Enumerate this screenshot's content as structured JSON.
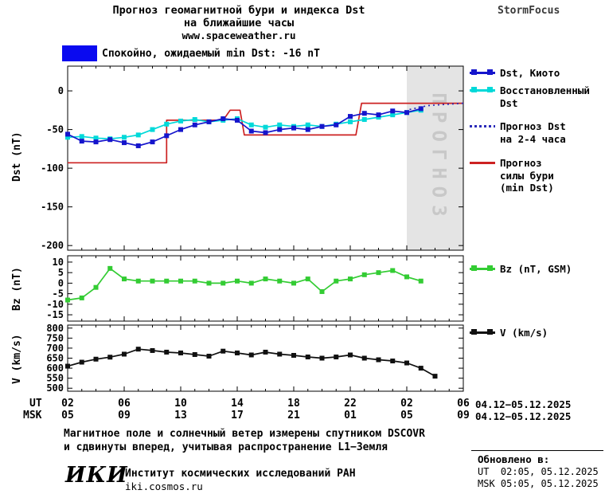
{
  "header": {
    "title_line1": "Прогноз геомагнитной бури и индекса Dst",
    "title_line2": "на ближайшие часы",
    "site": "www.spaceweather.ru",
    "brand": "StormFocus"
  },
  "status": {
    "label": "Спокойно, ожидаемый min Dst: -16 nT"
  },
  "colors": {
    "dst_kyoto": "#1515cc",
    "restored": "#00d9d9",
    "forecast_dst": "#2a2ab8",
    "forecast_storm": "#cc2222",
    "bz": "#33cc33",
    "v": "#101010",
    "status_box": "#0a0af0",
    "band": "#e4e4e4",
    "band_text": "#c8c8c8"
  },
  "chart_data": [
    {
      "id": "dst",
      "type": "line",
      "ylabel": "Dst (nT)",
      "ylim": [
        32,
        -206
      ],
      "yticks": [
        0,
        -50,
        -100,
        -150,
        -200
      ],
      "xlim": [
        2,
        30
      ],
      "xticks_major": [
        2,
        6,
        10,
        14,
        18,
        22,
        26,
        30
      ],
      "band": {
        "start_hour": 26,
        "label": "ПРОГНОЗ"
      },
      "series": [
        {
          "name": "Прогноз силы бури (min Dst)",
          "color": "#cc2222",
          "x": [
            2,
            9,
            9,
            13,
            13.5,
            14.2,
            14.5,
            22.4,
            22.8,
            30
          ],
          "values": [
            -93,
            -93,
            -38,
            -38,
            -25,
            -25,
            -57,
            -57,
            -16,
            -16
          ]
        },
        {
          "name": "Восстановленный Dst",
          "color": "#00d9d9",
          "marker": "square",
          "x": [
            2,
            3,
            4,
            5,
            6,
            7,
            8,
            9,
            10,
            11,
            12,
            13,
            14,
            15,
            16,
            17,
            18,
            19,
            20,
            21,
            22,
            23,
            24,
            25,
            26,
            27
          ],
          "values": [
            -60,
            -59,
            -61,
            -62,
            -60,
            -57,
            -50,
            -43,
            -39,
            -37,
            -40,
            -38,
            -36,
            -44,
            -47,
            -44,
            -46,
            -44,
            -46,
            -43,
            -40,
            -37,
            -34,
            -31,
            -28,
            -25
          ]
        },
        {
          "name": "Dst, Киото",
          "color": "#1515cc",
          "marker": "square",
          "x": [
            2,
            3,
            4,
            5,
            6,
            7,
            8,
            9,
            10,
            11,
            12,
            13,
            14,
            15,
            16,
            17,
            18,
            19,
            20,
            21,
            22,
            23,
            24,
            25,
            26,
            27
          ],
          "values": [
            -56,
            -65,
            -66,
            -63,
            -67,
            -71,
            -66,
            -58,
            -50,
            -44,
            -40,
            -36,
            -38,
            -52,
            -54,
            -50,
            -48,
            -50,
            -46,
            -44,
            -33,
            -29,
            -31,
            -26,
            -28,
            -23
          ]
        },
        {
          "name": "Прогноз Dst на 2-4 часа",
          "color": "#2a2ab8",
          "style": "dotted",
          "x": [
            26.2,
            27.5,
            30
          ],
          "values": [
            -24,
            -19,
            -16
          ]
        }
      ]
    },
    {
      "id": "bz",
      "type": "line",
      "ylabel": "Bz (nT)",
      "ylim": [
        13,
        -18
      ],
      "yticks": [
        10,
        5,
        0,
        -5,
        -10,
        -15
      ],
      "xlim": [
        2,
        30
      ],
      "xticks_major": [
        2,
        6,
        10,
        14,
        18,
        22,
        26,
        30
      ],
      "series": [
        {
          "name": "Bz (nT, GSM)",
          "color": "#33cc33",
          "marker": "square",
          "x": [
            2,
            3,
            4,
            5,
            6,
            7,
            8,
            9,
            10,
            11,
            12,
            13,
            14,
            15,
            16,
            17,
            18,
            19,
            20,
            21,
            22,
            23,
            24,
            25,
            26,
            27
          ],
          "values": [
            -8,
            -7,
            -2,
            7,
            2,
            1,
            1,
            1,
            1,
            1,
            0,
            0,
            1,
            0,
            2,
            1,
            0,
            2,
            -4,
            1,
            2,
            4,
            5,
            6,
            3,
            1
          ]
        }
      ]
    },
    {
      "id": "v",
      "type": "line",
      "ylabel": "V (km/s)",
      "ylim": [
        815,
        485
      ],
      "yticks": [
        800,
        750,
        700,
        650,
        600,
        550,
        500
      ],
      "xlim": [
        2,
        30
      ],
      "xticks_major": [
        2,
        6,
        10,
        14,
        18,
        22,
        26,
        30
      ],
      "series": [
        {
          "name": "V (km/s)",
          "color": "#101010",
          "marker": "square",
          "x": [
            2,
            3,
            4,
            5,
            6,
            7,
            8,
            9,
            10,
            11,
            12,
            13,
            14,
            15,
            16,
            17,
            18,
            19,
            20,
            21,
            22,
            23,
            24,
            25,
            26,
            27,
            28
          ],
          "values": [
            610,
            630,
            645,
            655,
            670,
            695,
            688,
            680,
            676,
            668,
            660,
            685,
            676,
            666,
            680,
            670,
            664,
            656,
            650,
            656,
            666,
            650,
            642,
            636,
            626,
            600,
            560
          ]
        }
      ]
    }
  ],
  "xaxis": {
    "hour_min": 2,
    "hour_max": 30,
    "tick_hours": [
      2,
      6,
      10,
      14,
      18,
      22,
      26,
      30
    ],
    "ut_label": "UT",
    "msk_label": "MSK",
    "ut_ticks": [
      "02",
      "06",
      "10",
      "14",
      "18",
      "22",
      "02",
      "06"
    ],
    "msk_ticks": [
      "05",
      "09",
      "13",
      "17",
      "21",
      "01",
      "05",
      "09"
    ],
    "ut_date": "04.12−05.12.2025",
    "msk_date": "04.12−05.12.2025"
  },
  "legend": {
    "dst_kyoto": {
      "lines": [
        "Dst, Киото"
      ]
    },
    "restored": {
      "lines": [
        "Восстановленный",
        "Dst"
      ]
    },
    "forecast_dst": {
      "lines": [
        "Прогноз Dst",
        "на 2-4 часа"
      ]
    },
    "forecast_storm": {
      "lines": [
        "Прогноз",
        "силы бури",
        "(min Dst)"
      ]
    },
    "bz": "Bz (nT, GSM)",
    "v": "V (km/s)"
  },
  "footer": {
    "note_line1": "Магнитное поле и солнечный ветер измерены спутником DSCOVR",
    "note_line2": "и сдвинуты вперед, учитывая распространение L1−Земля",
    "logo": "ИКИ",
    "institute": "Институт космических исследований РАН",
    "site": "iki.cosmos.ru",
    "updated_label": "Обновлено в:",
    "updated_ut": "UT  02:05, 05.12.2025",
    "updated_msk": "MSK 05:05, 05.12.2025"
  }
}
